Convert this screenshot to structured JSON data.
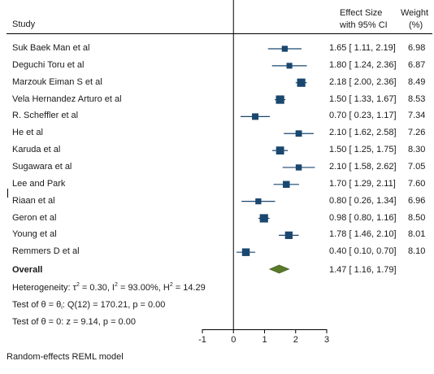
{
  "header": {
    "study_label": "Study",
    "effect_line1": "Effect Size",
    "effect_line2": "with 95% CI",
    "weight_line1": "Weight",
    "weight_line2": "(%)"
  },
  "chart_data": {
    "type": "forest",
    "xlim": [
      -1,
      3
    ],
    "ticks": [
      -1,
      0,
      1,
      2,
      3
    ],
    "tick_labels": [
      "-1",
      "0",
      "1",
      "2",
      "3"
    ],
    "reference_line": 0,
    "marker_color": "#1a476f",
    "overall_color": "#5a7a2a",
    "studies": [
      {
        "name": "Suk Baek Man et al",
        "es": 1.65,
        "lo": 1.11,
        "hi": 2.19,
        "ci_text": "1.65 [  1.11, 2.19]",
        "weight": 6.98,
        "weight_text": "6.98"
      },
      {
        "name": "Deguchi Toru et al",
        "es": 1.8,
        "lo": 1.24,
        "hi": 2.36,
        "ci_text": "1.80 [  1.24, 2.36]",
        "weight": 6.87,
        "weight_text": "6.87"
      },
      {
        "name": "Marzouk Eiman S et al",
        "es": 2.18,
        "lo": 2.0,
        "hi": 2.36,
        "ci_text": "2.18 [  2.00, 2.36]",
        "weight": 8.49,
        "weight_text": "8.49"
      },
      {
        "name": "Vela Hernandez Arturo et al",
        "es": 1.5,
        "lo": 1.33,
        "hi": 1.67,
        "ci_text": "1.50 [  1.33, 1.67]",
        "weight": 8.53,
        "weight_text": "8.53"
      },
      {
        "name": "R. Scheffler et al",
        "es": 0.7,
        "lo": 0.23,
        "hi": 1.17,
        "ci_text": "0.70 [  0.23, 1.17]",
        "weight": 7.34,
        "weight_text": "7.34"
      },
      {
        "name": "He et al",
        "es": 2.1,
        "lo": 1.62,
        "hi": 2.58,
        "ci_text": "2.10 [  1.62, 2.58]",
        "weight": 7.26,
        "weight_text": "7.26"
      },
      {
        "name": "Karuda et al",
        "es": 1.5,
        "lo": 1.25,
        "hi": 1.75,
        "ci_text": "1.50 [  1.25, 1.75]",
        "weight": 8.3,
        "weight_text": "8.30"
      },
      {
        "name": "Sugawara et al",
        "es": 2.1,
        "lo": 1.58,
        "hi": 2.62,
        "ci_text": "2.10 [  1.58, 2.62]",
        "weight": 7.05,
        "weight_text": "7.05"
      },
      {
        "name": "Lee and Park",
        "es": 1.7,
        "lo": 1.29,
        "hi": 2.11,
        "ci_text": "1.70 [  1.29, 2.11]",
        "weight": 7.6,
        "weight_text": "7.60"
      },
      {
        "name": "Riaan et al",
        "es": 0.8,
        "lo": 0.26,
        "hi": 1.34,
        "ci_text": "0.80 [  0.26, 1.34]",
        "weight": 6.96,
        "weight_text": "6.96"
      },
      {
        "name": "Geron et al",
        "es": 0.98,
        "lo": 0.8,
        "hi": 1.16,
        "ci_text": "0.98 [  0.80, 1.16]",
        "weight": 8.5,
        "weight_text": "8.50"
      },
      {
        "name": "Young et al",
        "es": 1.78,
        "lo": 1.46,
        "hi": 2.1,
        "ci_text": "1.78 [  1.46, 2.10]",
        "weight": 8.01,
        "weight_text": "8.01"
      },
      {
        "name": "Remmers D et al",
        "es": 0.4,
        "lo": 0.1,
        "hi": 0.7,
        "ci_text": "0.40 [  0.10, 0.70]",
        "weight": 8.1,
        "weight_text": "8.10"
      }
    ],
    "overall": {
      "label": "Overall",
      "es": 1.47,
      "lo": 1.16,
      "hi": 1.79,
      "ci_text": "1.47 [  1.16, 1.79]"
    }
  },
  "stats": {
    "heterogeneity_prefix": "Heterogeneity: ",
    "tau": "τ",
    "tau_sup": "2",
    "tau_value": " = 0.30, I",
    "i_sup": "2",
    "i_value": " = 93.00%, H",
    "h_sup": "2",
    "h_value": " = 14.29",
    "test_eq_prefix": "Test of θ = θ",
    "test_eq_sub": "i",
    "test_eq_rest": ": Q(12) = 170.21, p = 0.00",
    "test_zero": "Test of θ = 0: z = 9.14, p = 0.00"
  },
  "footer": {
    "model_label": "Random-effects REML model"
  }
}
